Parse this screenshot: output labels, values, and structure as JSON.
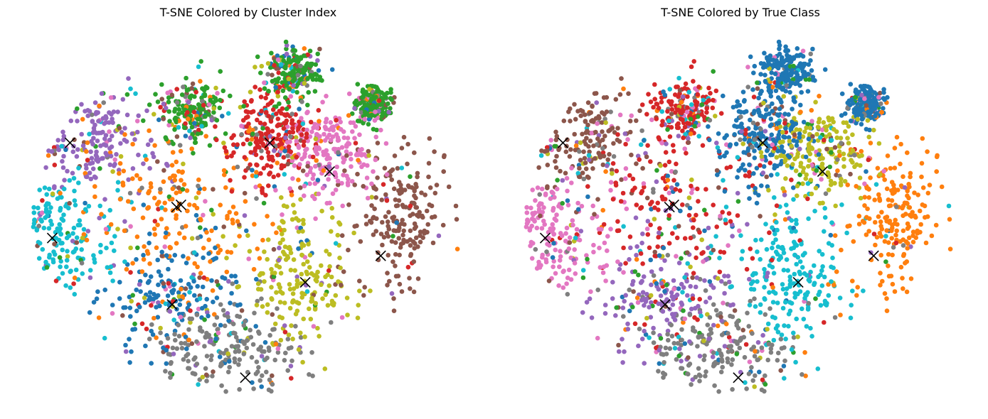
{
  "palette": [
    "#1f77b4",
    "#ff7f0e",
    "#2ca02c",
    "#d62728",
    "#9467bd",
    "#8c564b",
    "#e377c2",
    "#7f7f7f",
    "#bcbd22",
    "#17becf"
  ],
  "chart_data": [
    {
      "type": "scatter",
      "title": "T-SNE Colored by Cluster Index",
      "axes_visible": false,
      "point_colors_by": "cluster index",
      "centroids": [
        {
          "x": -80,
          "y": 33
        },
        {
          "x": -30,
          "y": 5
        },
        {
          "x": 37,
          "y": 20
        },
        {
          "x": 10,
          "y": 33
        },
        {
          "x": -88,
          "y": -10
        },
        {
          "x": 60,
          "y": -18
        },
        {
          "x": 26,
          "y": -30
        },
        {
          "x": -32,
          "y": 4
        },
        {
          "x": -34,
          "y": -40
        },
        {
          "x": -1,
          "y": -73
        }
      ]
    },
    {
      "type": "scatter",
      "title": "T-SNE Colored by True Class",
      "axes_visible": false,
      "point_colors_by": "true class",
      "centroids": [
        {
          "x": -80,
          "y": 33
        },
        {
          "x": -30,
          "y": 5
        },
        {
          "x": 37,
          "y": 20
        },
        {
          "x": 10,
          "y": 33
        },
        {
          "x": -88,
          "y": -10
        },
        {
          "x": 60,
          "y": -18
        },
        {
          "x": 26,
          "y": -30
        },
        {
          "x": -32,
          "y": 4
        },
        {
          "x": -34,
          "y": -40
        },
        {
          "x": -1,
          "y": -73
        }
      ],
      "regions": [
        {
          "color_index": 5,
          "x": -80,
          "y": 33
        },
        {
          "color_index": 3,
          "x": -30,
          "y": 5
        },
        {
          "color_index": 0,
          "x": 10,
          "y": 33
        },
        {
          "color_index": 8,
          "x": 37,
          "y": 20
        },
        {
          "color_index": 1,
          "x": 60,
          "y": -18
        },
        {
          "color_index": 6,
          "x": -88,
          "y": -10
        },
        {
          "color_index": 9,
          "x": 26,
          "y": -30
        },
        {
          "color_index": 4,
          "x": -34,
          "y": -40
        },
        {
          "color_index": 7,
          "x": -1,
          "y": -73
        }
      ]
    }
  ]
}
